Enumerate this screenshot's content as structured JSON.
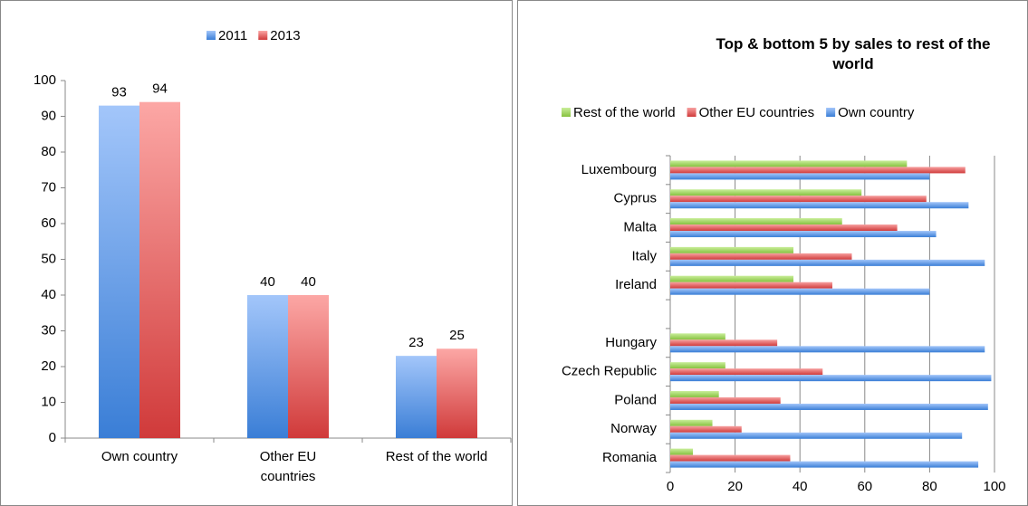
{
  "chart_data": [
    {
      "type": "bar",
      "categories": [
        "Own country",
        "Other EU countries",
        "Rest of the world"
      ],
      "series": [
        {
          "name": "2011",
          "color": "#5b93e0",
          "values": [
            93,
            40,
            23
          ]
        },
        {
          "name": "2013",
          "color": "#e06060",
          "values": [
            94,
            40,
            25
          ]
        }
      ],
      "ylim": [
        0,
        100
      ],
      "yticks": [
        0,
        10,
        20,
        30,
        40,
        50,
        60,
        70,
        80,
        90,
        100
      ],
      "legend": "top",
      "grid": false
    },
    {
      "type": "hbar",
      "title": "Top & bottom 5 by sales to rest of the world",
      "categories": [
        "Luxembourg",
        "Cyprus",
        "Malta",
        "Italy",
        "Ireland",
        null,
        "Hungary",
        "Czech Republic",
        "Poland",
        "Norway",
        "Romania"
      ],
      "series": [
        {
          "name": "Rest of the world",
          "color": "#9bd35a",
          "values": [
            73,
            59,
            53,
            38,
            38,
            null,
            17,
            17,
            15,
            13,
            7
          ]
        },
        {
          "name": "Other EU countries",
          "color": "#e05a5a",
          "values": [
            91,
            79,
            70,
            56,
            50,
            null,
            33,
            47,
            34,
            22,
            37
          ]
        },
        {
          "name": "Own country",
          "color": "#5b93e0",
          "values": [
            80,
            92,
            82,
            97,
            80,
            null,
            97,
            99,
            98,
            90,
            95
          ]
        }
      ],
      "xlim": [
        0,
        100
      ],
      "xticks": [
        0,
        20,
        40,
        60,
        80,
        100
      ],
      "legend": "top",
      "grid": true
    }
  ]
}
